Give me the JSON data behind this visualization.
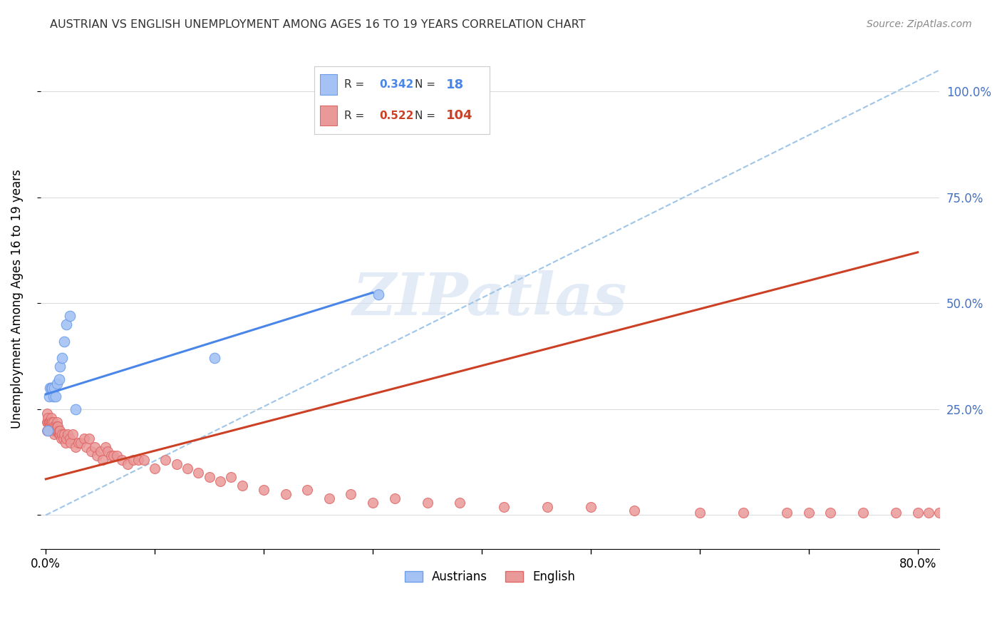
{
  "title": "AUSTRIAN VS ENGLISH UNEMPLOYMENT AMONG AGES 16 TO 19 YEARS CORRELATION CHART",
  "source": "Source: ZipAtlas.com",
  "ylabel": "Unemployment Among Ages 16 to 19 years",
  "xlim": [
    -0.005,
    0.82
  ],
  "ylim": [
    -0.08,
    1.1
  ],
  "xticks": [
    0.0,
    0.1,
    0.2,
    0.3,
    0.4,
    0.5,
    0.6,
    0.7,
    0.8
  ],
  "ytick_positions": [
    0.0,
    0.25,
    0.5,
    0.75,
    1.0
  ],
  "ytick_labels_right": [
    "",
    "25.0%",
    "50.0%",
    "75.0%",
    "100.0%"
  ],
  "austrians_R": 0.342,
  "austrians_N": 18,
  "english_R": 0.522,
  "english_N": 104,
  "austrians_color": "#a4c2f4",
  "english_color": "#ea9999",
  "austrians_edge_color": "#6d9eeb",
  "english_edge_color": "#e06666",
  "austrians_line_color": "#4a86e8",
  "english_line_color": "#cc4125",
  "dashed_line_color": "#9fc5e8",
  "watermark": "ZIPatlas",
  "austrians_line_x0": 0.0,
  "austrians_line_y0": 0.285,
  "austrians_line_x1": 0.3,
  "austrians_line_y1": 0.525,
  "english_line_x0": 0.0,
  "english_line_y0": 0.085,
  "english_line_x1": 0.8,
  "english_line_y1": 0.62,
  "dashed_line_x0": 0.0,
  "dashed_line_y0": 0.0,
  "dashed_line_x1": 0.82,
  "dashed_line_y1": 1.05,
  "austrians_x": [
    0.002,
    0.003,
    0.004,
    0.005,
    0.006,
    0.007,
    0.008,
    0.009,
    0.01,
    0.012,
    0.013,
    0.015,
    0.017,
    0.019,
    0.022,
    0.027,
    0.155,
    0.305
  ],
  "austrians_y": [
    0.2,
    0.28,
    0.3,
    0.3,
    0.3,
    0.28,
    0.3,
    0.28,
    0.31,
    0.32,
    0.35,
    0.37,
    0.41,
    0.45,
    0.47,
    0.25,
    0.37,
    0.52
  ],
  "english_x": [
    0.001,
    0.001,
    0.001,
    0.002,
    0.002,
    0.002,
    0.003,
    0.003,
    0.003,
    0.003,
    0.004,
    0.004,
    0.004,
    0.004,
    0.005,
    0.005,
    0.005,
    0.005,
    0.006,
    0.006,
    0.006,
    0.007,
    0.007,
    0.007,
    0.008,
    0.008,
    0.008,
    0.009,
    0.009,
    0.01,
    0.01,
    0.01,
    0.011,
    0.011,
    0.012,
    0.012,
    0.013,
    0.013,
    0.014,
    0.015,
    0.016,
    0.017,
    0.018,
    0.019,
    0.02,
    0.022,
    0.023,
    0.025,
    0.027,
    0.03,
    0.032,
    0.035,
    0.037,
    0.04,
    0.042,
    0.045,
    0.047,
    0.05,
    0.052,
    0.055,
    0.057,
    0.06,
    0.062,
    0.065,
    0.07,
    0.075,
    0.08,
    0.085,
    0.09,
    0.1,
    0.11,
    0.12,
    0.13,
    0.14,
    0.15,
    0.16,
    0.17,
    0.18,
    0.2,
    0.22,
    0.24,
    0.26,
    0.28,
    0.3,
    0.32,
    0.35,
    0.38,
    0.42,
    0.46,
    0.5,
    0.54,
    0.6,
    0.64,
    0.68,
    0.7,
    0.72,
    0.75,
    0.78,
    0.8,
    0.81,
    0.82,
    0.83,
    0.84,
    0.85
  ],
  "english_y": [
    0.22,
    0.2,
    0.24,
    0.22,
    0.2,
    0.23,
    0.22,
    0.21,
    0.2,
    0.22,
    0.22,
    0.21,
    0.22,
    0.21,
    0.22,
    0.21,
    0.22,
    0.23,
    0.21,
    0.22,
    0.2,
    0.21,
    0.2,
    0.22,
    0.21,
    0.2,
    0.19,
    0.21,
    0.2,
    0.22,
    0.2,
    0.21,
    0.2,
    0.21,
    0.19,
    0.2,
    0.19,
    0.2,
    0.18,
    0.19,
    0.18,
    0.19,
    0.17,
    0.18,
    0.19,
    0.18,
    0.17,
    0.19,
    0.16,
    0.17,
    0.17,
    0.18,
    0.16,
    0.18,
    0.15,
    0.16,
    0.14,
    0.15,
    0.13,
    0.16,
    0.15,
    0.14,
    0.14,
    0.14,
    0.13,
    0.12,
    0.13,
    0.13,
    0.13,
    0.11,
    0.13,
    0.12,
    0.11,
    0.1,
    0.09,
    0.08,
    0.09,
    0.07,
    0.06,
    0.05,
    0.06,
    0.04,
    0.05,
    0.03,
    0.04,
    0.03,
    0.03,
    0.02,
    0.02,
    0.02,
    0.01,
    0.005,
    0.005,
    0.005,
    0.005,
    0.005,
    0.005,
    0.005,
    0.005,
    0.005,
    0.005,
    0.005,
    0.005,
    0.005
  ]
}
